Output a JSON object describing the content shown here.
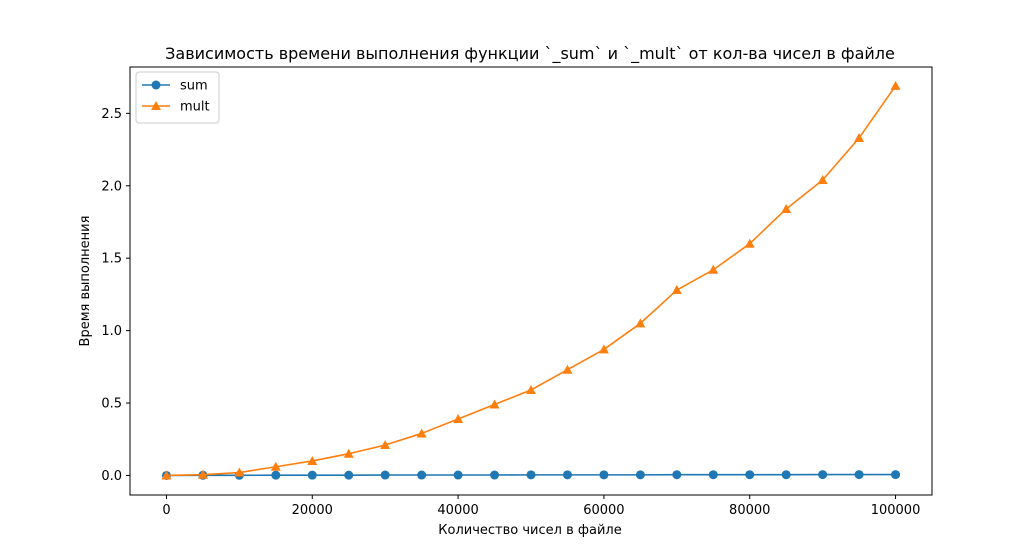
{
  "chart_data": {
    "type": "line",
    "title": "Зависимость времени выполнения функции `_sum` и `_mult` от кол-ва чисел в файле",
    "xlabel": "Количество чисел в файле",
    "ylabel": "Время выполнения",
    "xlim": [
      -5000,
      105000
    ],
    "ylim": [
      -0.135,
      2.82
    ],
    "x_ticks": [
      0,
      20000,
      40000,
      60000,
      80000,
      100000
    ],
    "y_ticks": [
      0.0,
      0.5,
      1.0,
      1.5,
      2.0,
      2.5
    ],
    "x_tick_labels": [
      "0",
      "20000",
      "40000",
      "60000",
      "80000",
      "100000"
    ],
    "y_tick_labels": [
      "0.0",
      "0.5",
      "1.0",
      "1.5",
      "2.0",
      "2.5"
    ],
    "grid": false,
    "legend_position": "top-left",
    "x": [
      0,
      5000,
      10000,
      15000,
      20000,
      25000,
      30000,
      35000,
      40000,
      45000,
      50000,
      55000,
      60000,
      65000,
      70000,
      75000,
      80000,
      85000,
      90000,
      95000,
      100000
    ],
    "series": [
      {
        "name": "sum",
        "color": "#1f77b4",
        "marker": "circle",
        "values": [
          0.0,
          0.001,
          0.001,
          0.002,
          0.002,
          0.002,
          0.003,
          0.003,
          0.003,
          0.003,
          0.004,
          0.004,
          0.004,
          0.004,
          0.005,
          0.005,
          0.005,
          0.005,
          0.006,
          0.006,
          0.006
        ]
      },
      {
        "name": "mult",
        "color": "#ff7f0e",
        "marker": "triangle",
        "values": [
          0.0,
          0.005,
          0.02,
          0.06,
          0.1,
          0.15,
          0.21,
          0.29,
          0.39,
          0.49,
          0.59,
          0.73,
          0.87,
          1.05,
          1.28,
          1.42,
          1.6,
          1.84,
          2.04,
          2.33,
          2.69
        ]
      }
    ]
  }
}
